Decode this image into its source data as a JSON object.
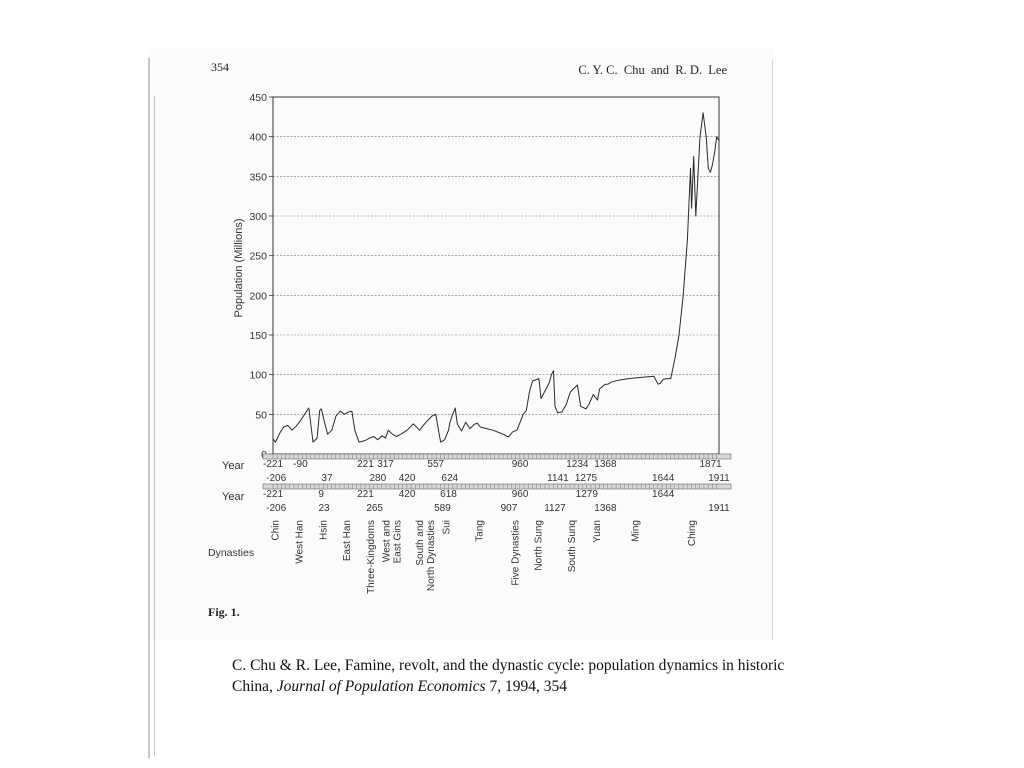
{
  "page_header": {
    "page_number": "354",
    "authors": "C. Y. C.  Chu  and  R. D.  Lee"
  },
  "chart_data": {
    "type": "line",
    "title": "",
    "ylabel": "Population (Millions)",
    "ylim": [
      0,
      450
    ],
    "yticks": [
      0,
      50,
      100,
      150,
      200,
      250,
      300,
      350,
      400,
      450
    ],
    "grid": true,
    "xlim": [
      -221,
      1911
    ],
    "series": [
      {
        "name": "",
        "x": [
          -221,
          -210,
          -200,
          -185,
          -170,
          -150,
          -130,
          -110,
          -90,
          -70,
          -50,
          -30,
          -10,
          2,
          10,
          25,
          40,
          60,
          80,
          100,
          120,
          140,
          156,
          170,
          190,
          220,
          240,
          260,
          280,
          300,
          317,
          330,
          350,
          370,
          390,
          420,
          450,
          480,
          510,
          540,
          557,
          565,
          580,
          600,
          618,
          625,
          635,
          650,
          660,
          680,
          700,
          720,
          740,
          755,
          770,
          800,
          830,
          860,
          880,
          900,
          907,
          925,
          945,
          960,
          975,
          990,
          1006,
          1020,
          1050,
          1060,
          1080,
          1100,
          1110,
          1120,
          1127,
          1140,
          1160,
          1180,
          1200,
          1215,
          1234,
          1250,
          1275,
          1290,
          1310,
          1330,
          1340,
          1368,
          1380,
          1393,
          1400,
          1430,
          1480,
          1520,
          1560,
          1600,
          1620,
          1630,
          1644,
          1660,
          1680,
          1700,
          1720,
          1740,
          1760,
          1775,
          1780,
          1790,
          1800,
          1810,
          1820,
          1835,
          1850,
          1860,
          1870,
          1880,
          1890,
          1900,
          1911
        ],
        "values": [
          19,
          15,
          20,
          28,
          34,
          36,
          30,
          35,
          42,
          50,
          58,
          15,
          20,
          55,
          57,
          40,
          25,
          30,
          48,
          54,
          50,
          53,
          54,
          30,
          15,
          17,
          20,
          22,
          18,
          23,
          20,
          30,
          25,
          22,
          25,
          30,
          38,
          30,
          40,
          48,
          50,
          38,
          15,
          18,
          30,
          40,
          48,
          58,
          38,
          29,
          40,
          32,
          37,
          39,
          34,
          32,
          30,
          27,
          25,
          22,
          22,
          28,
          30,
          40,
          50,
          55,
          80,
          92,
          95,
          70,
          80,
          90,
          100,
          105,
          60,
          52,
          53,
          62,
          78,
          82,
          87,
          60,
          57,
          63,
          75,
          68,
          82,
          88,
          88,
          90,
          91,
          93,
          95,
          96,
          97,
          98,
          88,
          89,
          94,
          95,
          95,
          120,
          150,
          200,
          270,
          360,
          310,
          375,
          300,
          350,
          400,
          430,
          400,
          360,
          355,
          365,
          380,
          400,
          395
        ]
      }
    ],
    "year_row_1": {
      "label": "Year",
      "top": [
        {
          "text": "-221",
          "year": -221
        },
        {
          "text": "-90",
          "year": -90
        },
        {
          "text": "221",
          "year": 221
        },
        {
          "text": "317",
          "year": 317
        },
        {
          "text": "557",
          "year": 557
        },
        {
          "text": "960",
          "year": 960
        },
        {
          "text": "1234",
          "year": 1234
        },
        {
          "text": "1368",
          "year": 1368
        },
        {
          "text": "1871",
          "year": 1871
        }
      ],
      "bottom": [
        {
          "text": "-206",
          "year": -206
        },
        {
          "text": "37",
          "year": 37
        },
        {
          "text": "280",
          "year": 280
        },
        {
          "text": "420",
          "year": 420
        },
        {
          "text": "624",
          "year": 624
        },
        {
          "text": "1141",
          "year": 1141
        },
        {
          "text": "1275",
          "year": 1275
        },
        {
          "text": "1644",
          "year": 1644
        },
        {
          "text": "1911",
          "year": 1911
        }
      ]
    },
    "year_row_2": {
      "label": "Year",
      "top": [
        {
          "text": "-221",
          "year": -221
        },
        {
          "text": "9",
          "year": 9
        },
        {
          "text": "221",
          "year": 221
        },
        {
          "text": "420",
          "year": 420
        },
        {
          "text": "618",
          "year": 618
        },
        {
          "text": "960",
          "year": 960
        },
        {
          "text": "1279",
          "year": 1279
        },
        {
          "text": "1644",
          "year": 1644
        }
      ],
      "bottom": [
        {
          "text": "-206",
          "year": -206
        },
        {
          "text": "23",
          "year": 23
        },
        {
          "text": "265",
          "year": 265
        },
        {
          "text": "589",
          "year": 589
        },
        {
          "text": "907",
          "year": 907
        },
        {
          "text": "1127",
          "year": 1127
        },
        {
          "text": "1368",
          "year": 1368
        },
        {
          "text": "1911",
          "year": 1911
        }
      ]
    },
    "dynasties": {
      "label": "Dynasties",
      "items": [
        {
          "name": "Chin",
          "year": -213
        },
        {
          "name": "West Han",
          "year": -100
        },
        {
          "name": "Hsin",
          "year": 16
        },
        {
          "name": "East Han",
          "year": 128
        },
        {
          "name": "Three-Kingdoms",
          "year": 243
        },
        {
          "name": "West and East Gins",
          "year": 342
        },
        {
          "name": "South and North Dynasties",
          "year": 504
        },
        {
          "name": "Sui",
          "year": 603
        },
        {
          "name": "Tang",
          "year": 762
        },
        {
          "name": "Five Dynasties",
          "year": 933
        },
        {
          "name": "North Sung",
          "year": 1043
        },
        {
          "name": "South Sunq",
          "year": 1203
        },
        {
          "name": "Yuan",
          "year": 1323
        },
        {
          "name": "Ming",
          "year": 1506
        },
        {
          "name": "Ching",
          "year": 1777
        }
      ]
    },
    "figure_label": "Fig. 1."
  },
  "caption": {
    "text_before": "C. Chu & R. Lee, Famine, revolt, and the dynastic cycle: population dynamics in historic China, ",
    "journal": "Journal of Population Economics",
    "text_after": " 7, 1994, 354"
  }
}
